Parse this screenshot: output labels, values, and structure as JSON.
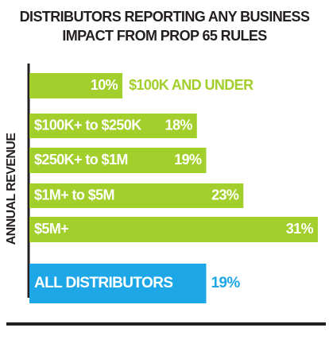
{
  "chart_data": {
    "type": "bar",
    "orientation": "horizontal",
    "title": [
      "DISTRIBUTORS REPORTING ANY BUSINESS",
      "IMPACT FROM PROP 65 RULES"
    ],
    "y_label": "ANNUAL REVENUE",
    "categories": [
      "$100K AND UNDER",
      "$100K+ to $250K",
      "$250K+ to $1M",
      "$1M+ to $5M",
      "$5M+",
      "ALL DISTRIBUTORS"
    ],
    "values": [
      10,
      18,
      19,
      23,
      31,
      19
    ],
    "value_labels": [
      "10%",
      "18%",
      "19%",
      "23%",
      "31%",
      "19%"
    ],
    "colors": [
      "#a2cf2b",
      "#a2cf2b",
      "#a2cf2b",
      "#a2cf2b",
      "#a2cf2b",
      "#1ea7e6"
    ]
  }
}
